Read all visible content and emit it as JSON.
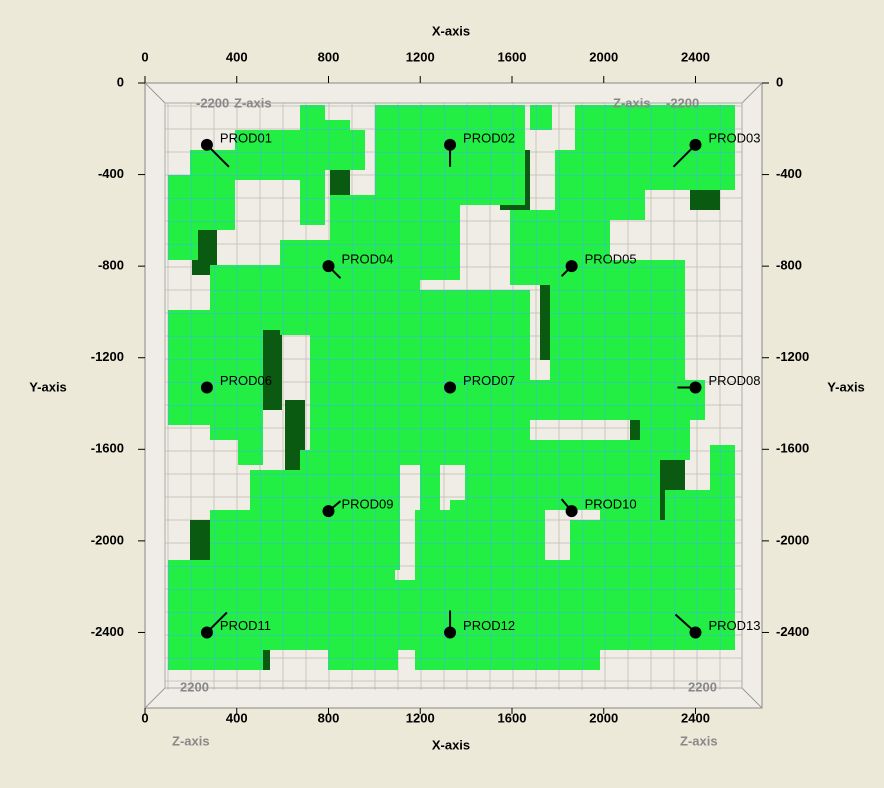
{
  "chart_data": {
    "type": "scatter",
    "x_label": "X-axis",
    "y_label": "Y-axis",
    "annotations": [
      "-2200",
      "Z-axis",
      "Z-axis",
      "-2200",
      "2200",
      "Z-axis",
      "2200",
      "Z-axis"
    ],
    "labels": [
      "PROD01",
      "PROD02",
      "PROD03",
      "PROD04",
      "PROD05",
      "PROD06",
      "PROD07",
      "PROD08",
      "PROD09",
      "PROD10",
      "PROD11",
      "PROD12",
      "PROD13"
    ],
    "x": [
      270,
      1330,
      2400,
      800,
      1860,
      270,
      1330,
      2400,
      800,
      1860,
      270,
      1330,
      2400
    ],
    "values": [
      -270,
      -270,
      -270,
      -800,
      -800,
      -1330,
      -1330,
      -1330,
      -1870,
      -1870,
      -2400,
      -2400,
      -2400
    ],
    "color": "#000000",
    "xlim": [
      0,
      2690
    ],
    "ylim": [
      -2730,
      0
    ],
    "xticks": [
      0,
      400,
      800,
      1200,
      1600,
      2000,
      2400
    ],
    "yticks": [
      0,
      -400,
      -800,
      -1200,
      -1600,
      -2000,
      -2400
    ]
  }
}
